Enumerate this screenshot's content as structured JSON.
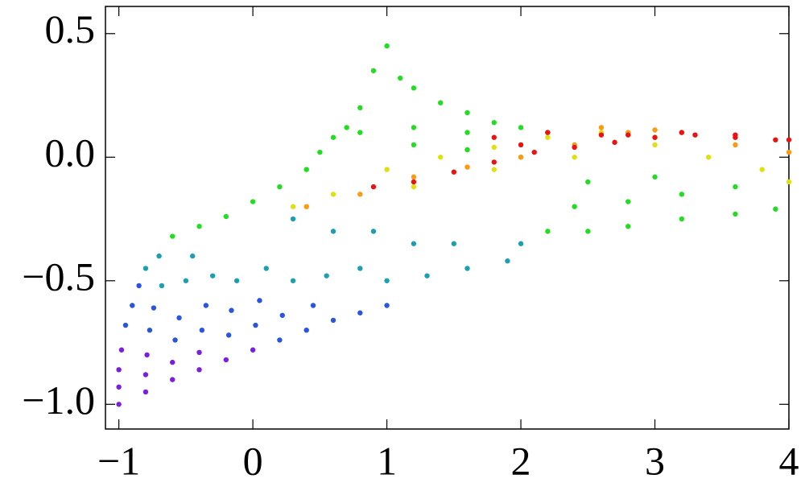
{
  "chart_data": {
    "type": "scatter",
    "xlim": [
      -1.1,
      4
    ],
    "ylim": [
      -1.1,
      0.61
    ],
    "xticks": [
      {
        "value": -1,
        "label": "−1"
      },
      0,
      1,
      2,
      3,
      4
    ],
    "yticks": [
      {
        "value": -1,
        "label": "−1.0"
      },
      {
        "value": -0.5,
        "label": "−0.5"
      },
      {
        "value": 0,
        "label": "0.0"
      },
      0.5
    ],
    "series": [
      {
        "color": "#7a1fe0",
        "x": [
          -1,
          -1,
          -1,
          -0.98,
          -0.8,
          -0.8,
          -0.79,
          -0.6,
          -0.6,
          -0.4,
          -0.4,
          -0.2,
          0
        ],
        "y": [
          -1,
          -0.93,
          -0.86,
          -0.78,
          -0.95,
          -0.88,
          -0.8,
          -0.9,
          -0.83,
          -0.86,
          -0.79,
          -0.82,
          -0.78
        ]
      },
      {
        "color": "#2a55e0",
        "x": [
          -0.95,
          -0.9,
          -0.85,
          -0.77,
          -0.74,
          -0.58,
          -0.55,
          -0.38,
          -0.35,
          -0.18,
          -0.16,
          0.02,
          0.05,
          0.2,
          0.22,
          0.4,
          0.45,
          0.6,
          0.8,
          1.0
        ],
        "y": [
          -0.68,
          -0.6,
          -0.52,
          -0.7,
          -0.61,
          -0.74,
          -0.65,
          -0.7,
          -0.6,
          -0.72,
          -0.62,
          -0.68,
          -0.58,
          -0.74,
          -0.64,
          -0.7,
          -0.6,
          -0.66,
          -0.63,
          -0.6
        ]
      },
      {
        "color": "#1aa0b0",
        "x": [
          -0.8,
          -0.7,
          -0.68,
          -0.5,
          -0.45,
          -0.3,
          -0.12,
          0.1,
          0.3,
          0.55,
          0.8,
          1.0,
          1.3,
          1.6,
          1.9,
          2.0,
          1.5,
          1.2,
          0.9,
          0.6,
          0.3
        ],
        "y": [
          -0.45,
          -0.4,
          -0.52,
          -0.5,
          -0.4,
          -0.48,
          -0.5,
          -0.45,
          -0.5,
          -0.48,
          -0.45,
          -0.5,
          -0.48,
          -0.45,
          -0.42,
          -0.35,
          -0.35,
          -0.35,
          -0.3,
          -0.3,
          -0.25
        ]
      },
      {
        "color": "#22dd22",
        "x": [
          -0.6,
          -0.4,
          -0.2,
          0,
          0.2,
          0.4,
          0.5,
          0.6,
          0.7,
          0.8,
          0.9,
          1.0,
          1.1,
          1.2,
          1.4,
          1.6,
          1.8,
          2.0,
          2.2,
          0.8,
          1.2,
          1.6,
          2.2,
          2.5,
          2.8,
          3.2,
          3.6,
          3.9,
          2.4,
          2.8,
          3.2,
          3.6,
          1.2,
          1.6,
          2.0,
          2.5,
          3.0
        ],
        "y": [
          -0.32,
          -0.28,
          -0.24,
          -0.18,
          -0.12,
          -0.05,
          0.02,
          0.08,
          0.12,
          0.2,
          0.35,
          0.45,
          0.32,
          0.28,
          0.22,
          0.18,
          0.14,
          0.12,
          0.1,
          0.1,
          0.12,
          0.1,
          -0.3,
          -0.3,
          -0.28,
          -0.25,
          -0.23,
          -0.21,
          -0.2,
          -0.18,
          -0.15,
          -0.12,
          0.05,
          0.03,
          0,
          -0.1,
          -0.08
        ]
      },
      {
        "color": "#e0e010",
        "x": [
          0.3,
          0.6,
          1.0,
          1.4,
          1.8,
          2.2,
          2.6,
          3.0,
          3.4,
          3.8,
          4.0,
          1.2,
          1.8,
          2.4,
          3.0
        ],
        "y": [
          -0.2,
          -0.15,
          -0.05,
          0,
          0.04,
          0.08,
          0.1,
          0.05,
          0,
          -0.05,
          -0.1,
          -0.12,
          -0.05,
          0,
          0.08
        ]
      },
      {
        "color": "#ff9910",
        "x": [
          0.4,
          0.8,
          1.2,
          1.6,
          2.0,
          2.4,
          2.8,
          3.2,
          3.6,
          4.0,
          2.6,
          3.0
        ],
        "y": [
          -0.2,
          -0.15,
          -0.08,
          -0.04,
          0,
          0.05,
          0.1,
          0.1,
          0.05,
          0.02,
          0.12,
          0.11
        ]
      },
      {
        "color": "#ee1111",
        "x": [
          0.9,
          1.2,
          1.5,
          1.8,
          2.1,
          2.4,
          2.7,
          3.0,
          3.3,
          3.6,
          3.9,
          1.8,
          2.2,
          2.6,
          3.2,
          3.6,
          4.0,
          2.0,
          2.8
        ],
        "y": [
          -0.12,
          -0.1,
          -0.06,
          -0.02,
          0.02,
          0.04,
          0.06,
          0.08,
          0.09,
          0.08,
          0.07,
          0.08,
          0.1,
          0.09,
          0.1,
          0.09,
          0.07,
          0.05,
          0.09
        ]
      }
    ]
  }
}
